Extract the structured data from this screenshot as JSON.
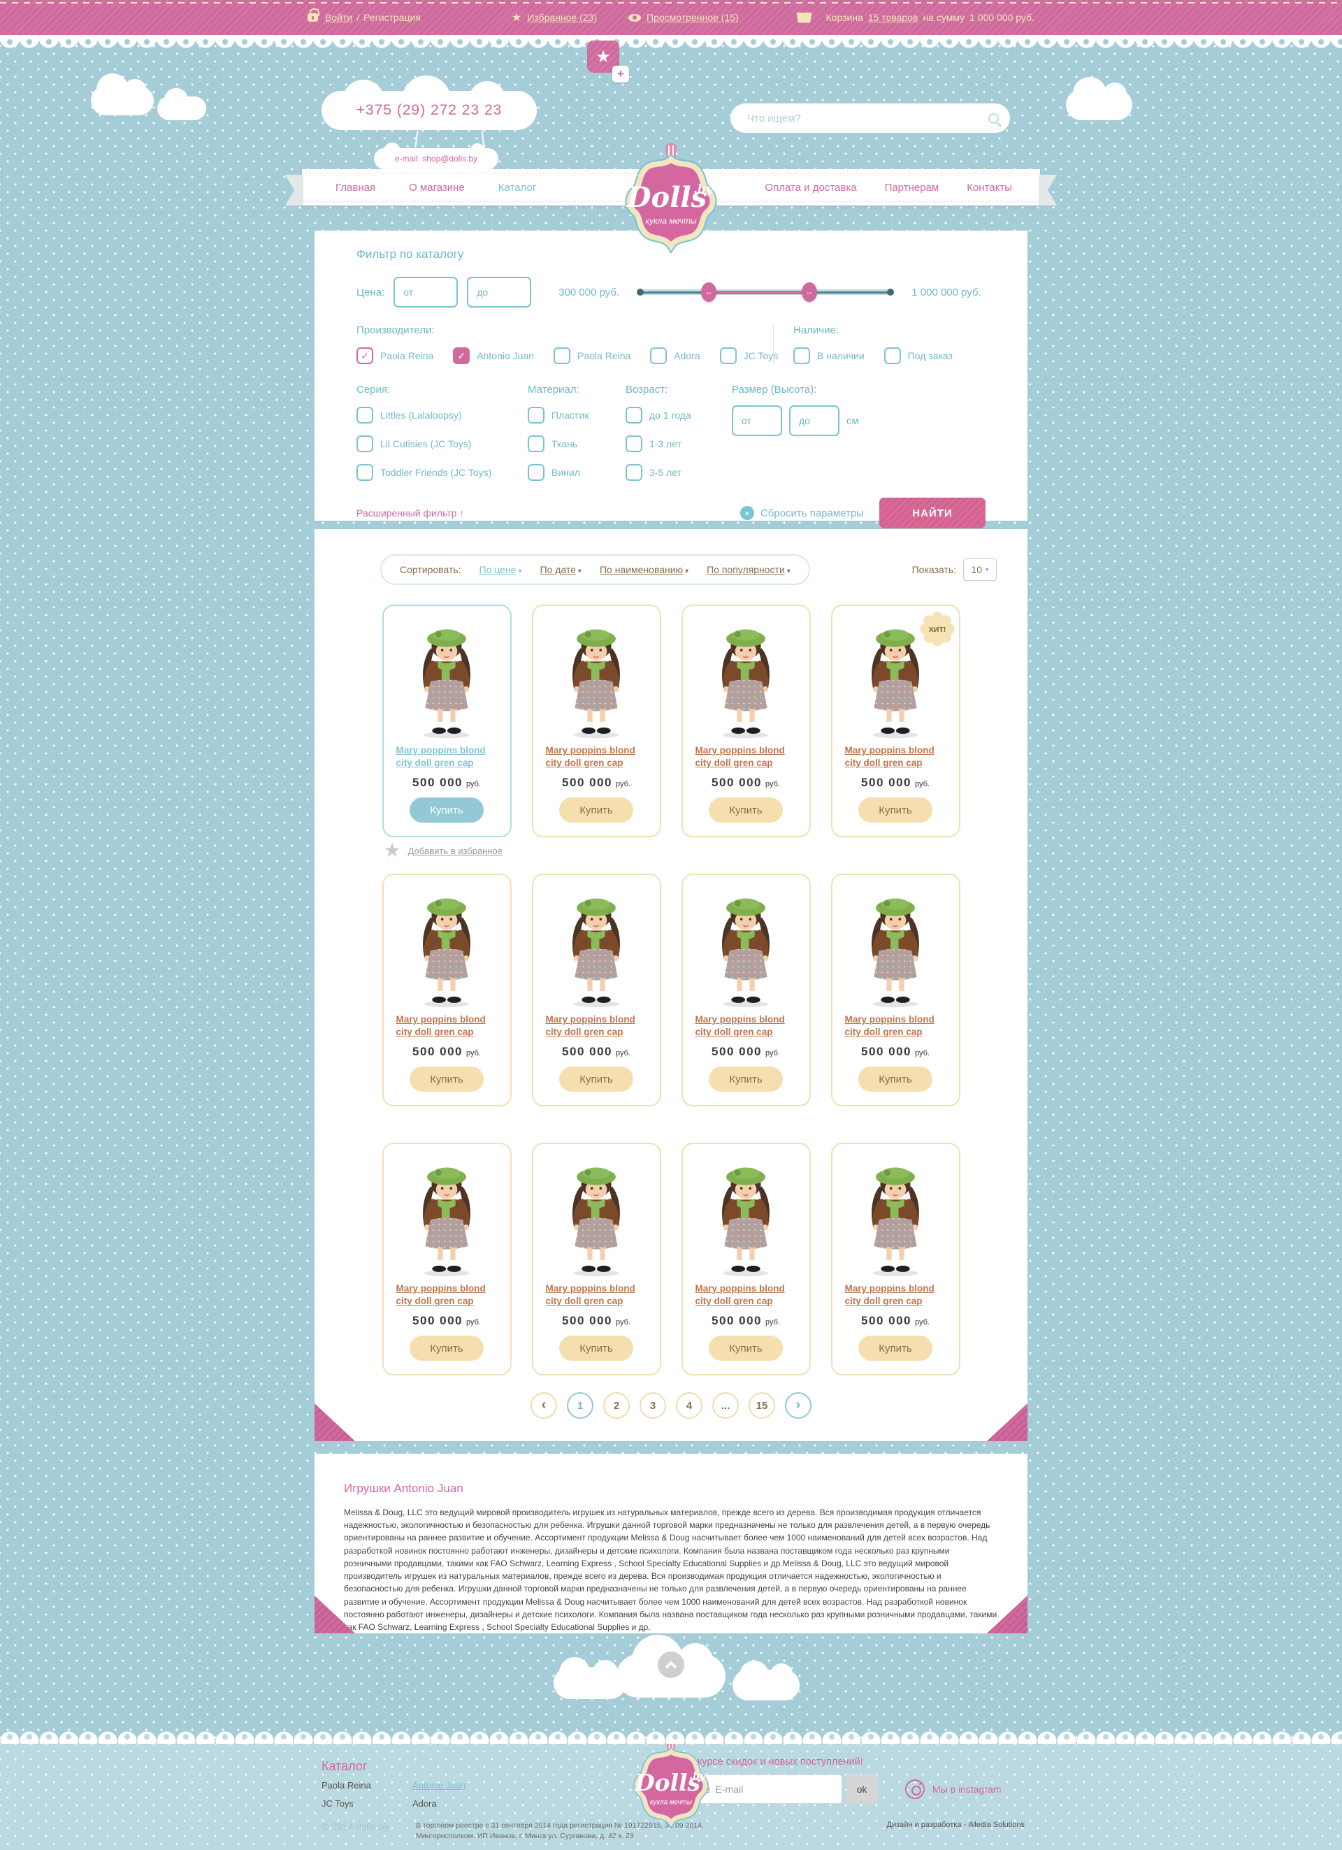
{
  "theme": {
    "pink": "#d0699e",
    "teal": "#7cc3d2",
    "cream": "#f4e5ba",
    "blue_bg": "#a5cdd8",
    "footer_bg": "#bbd9e1",
    "brown": "#8a6f4c",
    "card_cream": "#f3e0b6"
  },
  "icons": {
    "star": "★",
    "check": "✓",
    "chevron_down": "▾",
    "select_chevron": "▾",
    "arrows_h": "↔",
    "up_arrow": "↑",
    "plus": "+",
    "close": "×",
    "envelope": "✉",
    "prev": "‹",
    "next": "›",
    "ellipsis": "...",
    "lock": "lock-icon",
    "eye": "eye-icon",
    "basket": "basket-icon",
    "magnifier": "search-icon",
    "camera": "instagram-icon"
  },
  "brand": {
    "name": "Dolls",
    "tld": ".by",
    "tagline": "кукла мечты"
  },
  "topbar": {
    "login": "Войти",
    "sep": "/",
    "register": "Регистрация",
    "favorites": "Избранное (23)",
    "viewed": "Просмотренное (15)",
    "cart_label": "Корзина",
    "cart_items": "15 товаров",
    "cart_sum_prefix": "на сумму",
    "cart_sum": "1 000 000 руб."
  },
  "header": {
    "phone": "+375 (29) 272 23 23",
    "email": "e-mail: shop@dolls.by",
    "search_placeholder": "Что ищем?"
  },
  "nav": {
    "items": [
      {
        "label": "Главная",
        "active": false
      },
      {
        "label": "О магазине",
        "active": false
      },
      {
        "label": "Каталог",
        "active": true
      },
      {
        "label": "Оплата и доставка",
        "active": false
      },
      {
        "label": "Партнерам",
        "active": false
      },
      {
        "label": "Контакты",
        "active": false
      }
    ]
  },
  "filter": {
    "title": "Фильтр по каталогу",
    "price_label": "Цена:",
    "from_placeholder": "от",
    "to_placeholder": "до",
    "price_min": "300 000 руб.",
    "price_max": "1 000 000 руб.",
    "slider": {
      "min_pos_pct": 28,
      "max_pos_pct": 67
    },
    "producers_label": "Производители:",
    "producers": [
      {
        "label": "Paola Reina",
        "state": "checked-outline"
      },
      {
        "label": "Antonio Juan",
        "state": "checked"
      },
      {
        "label": "Paola Reina",
        "state": "unchecked"
      },
      {
        "label": "Adora",
        "state": "unchecked"
      },
      {
        "label": "JC Toys",
        "state": "unchecked"
      }
    ],
    "availability_label": "Наличие:",
    "availability": [
      {
        "label": "В наличии",
        "state": "unchecked"
      },
      {
        "label": "Под заказ",
        "state": "unchecked"
      }
    ],
    "series_label": "Серия:",
    "series": [
      "Littles (Lalaloopsy)",
      "Lil Cutisies (JC Toys)",
      "Toddler Friends (JC Toys)"
    ],
    "material_label": "Материал:",
    "materials": [
      "Пластик",
      "Ткань",
      "Винил"
    ],
    "age_label": "Возраст:",
    "ages": [
      "до 1 года",
      "1-3 лет",
      "3-5 лет"
    ],
    "size_label": "Размер (Высота):",
    "size_from": "от",
    "size_to": "до",
    "size_unit": "см",
    "extended_filter": "Расширенный фильтр",
    "extended_filter_icon": "↑",
    "reset": "Сбросить параметры",
    "submit": "НАЙТИ"
  },
  "sort": {
    "label": "Сортировать:",
    "options": [
      {
        "label": "По цене",
        "active": true
      },
      {
        "label": "По дате",
        "active": false
      },
      {
        "label": "По наименованию",
        "active": false
      },
      {
        "label": "По популярности",
        "active": false
      }
    ],
    "show_label": "Показать:",
    "show_value": "10"
  },
  "catalog": {
    "product_title": "Mary poppins blond city doll gren cap",
    "price": "500 000",
    "currency": "руб.",
    "buy": "Купить",
    "hit_badge": "ХИТ!",
    "add_favorite": "Добавить в избранное",
    "cards": [
      {
        "style": "featured",
        "hit": false
      },
      {
        "style": "default",
        "hit": false
      },
      {
        "style": "default",
        "hit": false
      },
      {
        "style": "default",
        "hit": true
      },
      {
        "style": "default",
        "hit": false
      },
      {
        "style": "default",
        "hit": false
      },
      {
        "style": "default",
        "hit": false
      },
      {
        "style": "default",
        "hit": false
      },
      {
        "style": "default",
        "hit": false
      },
      {
        "style": "default",
        "hit": false
      },
      {
        "style": "default",
        "hit": false
      },
      {
        "style": "default",
        "hit": false
      }
    ]
  },
  "pagination": {
    "items": [
      {
        "label": "‹",
        "kind": "prev"
      },
      {
        "label": "1",
        "kind": "page",
        "active": true
      },
      {
        "label": "2",
        "kind": "page",
        "active": false
      },
      {
        "label": "3",
        "kind": "page",
        "active": false
      },
      {
        "label": "4",
        "kind": "page",
        "active": false
      },
      {
        "label": "...",
        "kind": "page",
        "active": false
      },
      {
        "label": "15",
        "kind": "page",
        "active": false
      },
      {
        "label": "›",
        "kind": "next"
      }
    ]
  },
  "seo": {
    "title": "Игрушки Antonio Juan",
    "body": "Melissa & Doug, LLC это ведущий мировой производитель игрушек из натуральных материалов, прежде всего из дерева. Вся производимая продукция отличается надежностью, экологичностью и безопасностью для ребенка. Игрушки данной торговой марки предназначены не только для развлечения детей, а в первую очередь ориентированы на раннее развитие и обучение. Ассортимент продукции Melissa & Doug насчитывает более чем 1000 наименований для детей всех возрастов. Над разработкой новинок постоянно работают инженеры, дизайнеры и детские психологи. Компания была названа поставщиком года несколько раз крупными розничными продавцами, такими как FAO Schwarz, Learning Express , School Specialty Educational Supplies и др.Melissa & Doug, LLC это ведущий мировой производитель игрушек из натуральных материалов, прежде всего из дерева. Вся производимая продукция отличается надежностью, экологичностью и безопасностью для ребенка. Игрушки данной торговой марки предназначены не только для развлечения детей, а в первую очередь ориентированы на раннее развитие и обучение. Ассортимент продукции Melissa & Doug насчитывает более чем 1000 наименований для детей всех возрастов. Над разработкой новинок постоянно работают инженеры, дизайнеры и детские психологи. Компания была названа поставщиком года несколько раз крупными розничными продавцами, такими как FAO Schwarz, Learning Express , School Specialty Educational Supplies и др."
  },
  "footer": {
    "catalog_title": "Каталог",
    "links": [
      {
        "label": "Paola Reina",
        "active": false
      },
      {
        "label": "Antonio Juan",
        "active": true
      },
      {
        "label": "JC Toys",
        "active": false
      },
      {
        "label": "Adora",
        "active": false
      }
    ],
    "newsletter_title": "Будь в курсе скидок и новых поступлений!",
    "email_placeholder": "Ваш  E-mail",
    "ok": "ok",
    "instagram": "Мы в instagram"
  },
  "legal": {
    "copyright": "© 2014 dolls.by",
    "registry1": "В торговом реестре с 31 сентября 2014 года регистрация № 191722915, 31.09.2014,",
    "registry2": "Мингорисполком. ИП Иванов, г. Минск ул. Сурганова, д. 42 к. 28",
    "credits": "Дизайн и разработка  - iMedia Solutions"
  }
}
